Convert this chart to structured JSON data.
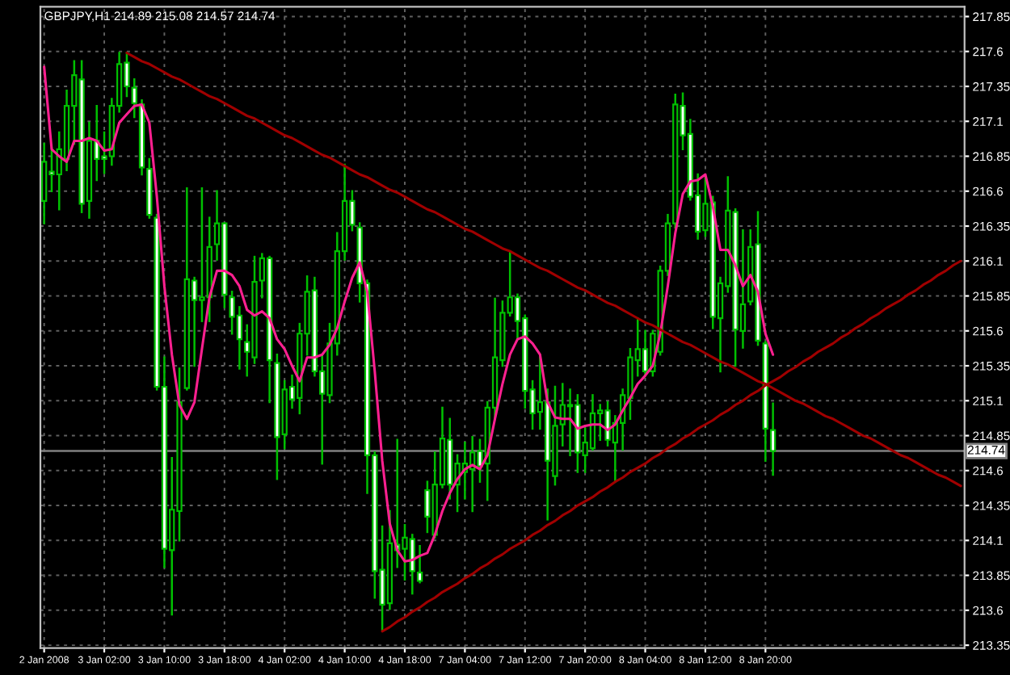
{
  "chart_data": {
    "type": "candlestick",
    "title": "GBPJPY,H1 214.89 215.08 214.57 214.74",
    "categories": [
      "2 Jan 2008",
      null,
      null,
      null,
      null,
      null,
      null,
      null,
      "3 Jan 02:00",
      null,
      null,
      null,
      null,
      null,
      null,
      null,
      "3 Jan 10:00",
      null,
      null,
      null,
      null,
      null,
      null,
      null,
      "3 Jan 18:00",
      null,
      null,
      null,
      null,
      null,
      null,
      null,
      "4 Jan 02:00",
      null,
      null,
      null,
      null,
      null,
      null,
      null,
      "4 Jan 10:00",
      null,
      null,
      null,
      null,
      null,
      null,
      null,
      "4 Jan 18:00",
      null,
      null,
      null,
      null,
      null,
      null,
      null,
      "7 Jan 04:00",
      null,
      null,
      null,
      null,
      null,
      null,
      null,
      "7 Jan 12:00",
      null,
      null,
      null,
      null,
      null,
      null,
      null,
      "7 Jan 20:00",
      null,
      null,
      null,
      null,
      null,
      null,
      null,
      "8 Jan 04:00",
      null,
      null,
      null,
      null,
      null,
      null,
      null,
      "8 Jan 12:00",
      null,
      null,
      null,
      null,
      null,
      null,
      null,
      "8 Jan 20:00",
      null,
      null,
      null,
      null,
      null,
      null,
      null,
      null,
      null,
      null,
      null,
      null,
      null,
      null,
      null,
      null,
      null,
      null,
      null,
      null,
      null,
      null,
      null,
      null,
      null,
      null
    ],
    "ylim": [
      213.33,
      217.92
    ],
    "yticks": [
      213.35,
      213.6,
      213.85,
      214.1,
      214.35,
      214.6,
      214.85,
      215.1,
      215.35,
      215.6,
      215.85,
      216.1,
      216.35,
      216.6,
      216.85,
      217.1,
      217.35,
      217.6,
      217.85
    ],
    "grid": true,
    "ref_lines": [
      {
        "axis": "y",
        "value": 214.74,
        "label": "214.74",
        "color": "#808080"
      }
    ],
    "series": [
      {
        "type": "line",
        "color": "#ff2090",
        "values": [
          217.49,
          216.9,
          216.85,
          216.81,
          216.96,
          216.96,
          216.98,
          216.96,
          216.89,
          216.9,
          217.09,
          217.15,
          217.21,
          217.22,
          217.09,
          216.56,
          215.92,
          215.43,
          215.07,
          214.97,
          215.09,
          215.47,
          215.84,
          216.03,
          216.03,
          216.0,
          215.92,
          215.75,
          215.71,
          215.74,
          215.69,
          215.54,
          215.47,
          215.35,
          215.24,
          215.41,
          215.41,
          215.43,
          215.5,
          215.62,
          215.81,
          215.98,
          216.09,
          215.88,
          215.31,
          214.67,
          214.22,
          214.03,
          213.95,
          213.96,
          213.99,
          214.01,
          214.14,
          214.31,
          214.44,
          214.54,
          214.61,
          214.64,
          214.61,
          214.71,
          214.97,
          215.22,
          215.43,
          215.54,
          215.56,
          215.51,
          215.43,
          215.09,
          214.98,
          214.97,
          214.97,
          214.9,
          214.92,
          214.93,
          214.93,
          214.89,
          214.93,
          215.03,
          215.12,
          215.22,
          215.28,
          215.35,
          215.58,
          215.92,
          216.3,
          216.58,
          216.67,
          216.68,
          216.72,
          216.49,
          216.18,
          216.18,
          216.07,
          215.92,
          216.0,
          215.88,
          215.58,
          215.43,
          null,
          null,
          null,
          null,
          null,
          null,
          null,
          null,
          null,
          null,
          null,
          null,
          null,
          null,
          null,
          null,
          null,
          null,
          null,
          null,
          null,
          null,
          null,
          null,
          null
        ]
      },
      {
        "type": "line",
        "color": "#a00000",
        "values": [
          null,
          null,
          null,
          null,
          null,
          null,
          null,
          null,
          null,
          null,
          null,
          217.59,
          217.56,
          217.53,
          217.51,
          217.48,
          217.45,
          217.42,
          217.4,
          217.37,
          217.34,
          217.31,
          217.28,
          217.26,
          217.23,
          217.2,
          217.17,
          217.14,
          217.12,
          217.09,
          217.06,
          217.03,
          217.0,
          216.98,
          216.95,
          216.92,
          216.89,
          216.86,
          216.84,
          216.81,
          216.78,
          216.75,
          216.72,
          216.7,
          216.67,
          216.64,
          216.61,
          216.59,
          216.56,
          216.53,
          216.5,
          216.47,
          216.45,
          216.42,
          216.39,
          216.36,
          216.33,
          216.31,
          216.28,
          216.25,
          216.22,
          216.19,
          216.17,
          216.14,
          216.11,
          216.08,
          216.05,
          216.03,
          216.0,
          215.97,
          215.94,
          215.91,
          215.89,
          215.86,
          215.83,
          215.8,
          215.78,
          215.75,
          215.72,
          215.69,
          215.66,
          215.64,
          215.61,
          215.58,
          215.55,
          215.52,
          215.5,
          215.47,
          215.44,
          215.41,
          215.38,
          215.36,
          215.33,
          215.3,
          215.27,
          215.24,
          215.22,
          215.19,
          215.16,
          215.13,
          215.1,
          215.08,
          215.05,
          215.02,
          214.99,
          214.97,
          214.94,
          214.91,
          214.88,
          214.85,
          214.83,
          214.8,
          214.77,
          214.74,
          214.71,
          214.69,
          214.66,
          214.63,
          214.6,
          214.57,
          214.55,
          214.52,
          214.49
        ]
      },
      {
        "type": "line",
        "color": "#a00000",
        "values": [
          null,
          null,
          null,
          null,
          null,
          null,
          null,
          null,
          null,
          null,
          null,
          null,
          null,
          null,
          null,
          null,
          null,
          null,
          null,
          null,
          null,
          null,
          null,
          null,
          null,
          null,
          null,
          null,
          null,
          null,
          null,
          null,
          null,
          null,
          null,
          null,
          null,
          null,
          null,
          null,
          null,
          null,
          null,
          null,
          null,
          213.45,
          213.48,
          213.52,
          213.55,
          213.59,
          213.62,
          213.66,
          213.69,
          213.73,
          213.76,
          213.79,
          213.83,
          213.86,
          213.9,
          213.93,
          213.97,
          214.0,
          214.04,
          214.07,
          214.1,
          214.14,
          214.17,
          214.21,
          214.24,
          214.28,
          214.31,
          214.35,
          214.38,
          214.41,
          214.45,
          214.48,
          214.52,
          214.55,
          214.59,
          214.62,
          214.65,
          214.69,
          214.72,
          214.76,
          214.79,
          214.83,
          214.86,
          214.9,
          214.93,
          214.96,
          215.0,
          215.03,
          215.07,
          215.1,
          215.14,
          215.17,
          215.21,
          215.24,
          215.27,
          215.31,
          215.34,
          215.38,
          215.41,
          215.45,
          215.48,
          215.51,
          215.55,
          215.58,
          215.62,
          215.65,
          215.69,
          215.72,
          215.76,
          215.79,
          215.82,
          215.86,
          215.89,
          215.93,
          215.96,
          216.0,
          216.03,
          216.07,
          216.1
        ]
      },
      {
        "color": "#00c000",
        "ohlc": [
          [
            216.53,
            216.94,
            216.37,
            216.81
          ],
          [
            216.74,
            216.91,
            216.6,
            216.72
          ],
          [
            216.72,
            217.02,
            216.47,
            216.9
          ],
          [
            216.83,
            217.32,
            216.75,
            217.21
          ],
          [
            217.21,
            217.53,
            216.94,
            217.43
          ],
          [
            217.4,
            217.53,
            216.45,
            216.51
          ],
          [
            216.53,
            217.09,
            216.41,
            216.96
          ],
          [
            216.96,
            217.21,
            216.68,
            216.83
          ],
          [
            216.85,
            217.02,
            216.73,
            216.83
          ],
          [
            216.85,
            217.26,
            216.79,
            217.21
          ],
          [
            217.21,
            217.59,
            217.17,
            217.51
          ],
          [
            217.52,
            217.59,
            217.28,
            217.35
          ],
          [
            217.34,
            217.4,
            217.13,
            217.23
          ],
          [
            217.22,
            217.25,
            216.72,
            216.77
          ],
          [
            216.76,
            216.83,
            216.41,
            216.43
          ],
          [
            216.41,
            216.43,
            215.18,
            215.2
          ],
          [
            215.2,
            215.41,
            213.91,
            214.04
          ],
          [
            214.03,
            214.69,
            213.57,
            214.32
          ],
          [
            214.31,
            215.33,
            214.1,
            215.09
          ],
          [
            215.19,
            216.62,
            215.18,
            215.97
          ],
          [
            215.96,
            215.98,
            215.35,
            215.82
          ],
          [
            215.82,
            216.62,
            215.67,
            215.84
          ],
          [
            215.84,
            216.41,
            215.67,
            216.2
          ],
          [
            216.22,
            216.6,
            216.11,
            216.37
          ],
          [
            216.37,
            216.37,
            215.77,
            215.86
          ],
          [
            215.84,
            215.88,
            215.58,
            215.7
          ],
          [
            215.71,
            215.77,
            215.33,
            215.54
          ],
          [
            215.52,
            215.64,
            215.28,
            215.45
          ],
          [
            215.41,
            216.13,
            215.37,
            215.95
          ],
          [
            215.96,
            216.15,
            215.84,
            216.12
          ],
          [
            216.12,
            216.13,
            215.09,
            215.39
          ],
          [
            215.37,
            215.43,
            214.54,
            214.84
          ],
          [
            214.86,
            215.24,
            214.76,
            215.18
          ],
          [
            215.2,
            215.28,
            215.05,
            215.11
          ],
          [
            215.12,
            215.65,
            215.01,
            215.58
          ],
          [
            215.58,
            215.99,
            215.43,
            215.88
          ],
          [
            215.89,
            215.98,
            215.28,
            215.31
          ],
          [
            215.31,
            215.43,
            214.65,
            215.15
          ],
          [
            215.14,
            215.65,
            215.09,
            215.51
          ],
          [
            215.51,
            216.3,
            215.43,
            216.17
          ],
          [
            216.17,
            216.79,
            216.11,
            216.53
          ],
          [
            216.53,
            216.6,
            216.32,
            216.36
          ],
          [
            216.34,
            216.37,
            215.81,
            215.94
          ],
          [
            215.94,
            215.96,
            214.44,
            214.71
          ],
          [
            214.71,
            214.73,
            213.69,
            213.88
          ],
          [
            213.89,
            214.2,
            213.46,
            213.64
          ],
          [
            213.65,
            214.31,
            213.61,
            214.08
          ],
          [
            214.07,
            214.82,
            213.91,
            214.03
          ],
          [
            214.04,
            214.21,
            213.82,
            214.12
          ],
          [
            214.11,
            214.14,
            213.72,
            213.88
          ],
          [
            213.87,
            214.06,
            213.8,
            213.81
          ],
          [
            214.46,
            214.52,
            214.16,
            214.27
          ],
          [
            214.14,
            214.73,
            214.12,
            214.5
          ],
          [
            214.5,
            215.05,
            214.48,
            214.83
          ],
          [
            214.82,
            214.97,
            214.4,
            214.5
          ],
          [
            214.5,
            214.71,
            214.31,
            214.65
          ],
          [
            214.59,
            214.8,
            214.4,
            214.65
          ],
          [
            214.61,
            214.84,
            214.31,
            214.73
          ],
          [
            214.74,
            214.82,
            214.52,
            214.63
          ],
          [
            214.65,
            215.09,
            214.39,
            215.05
          ],
          [
            215.05,
            215.83,
            214.97,
            215.41
          ],
          [
            215.39,
            215.81,
            215.35,
            215.73
          ],
          [
            215.73,
            216.17,
            215.71,
            215.84
          ],
          [
            215.84,
            215.86,
            215.54,
            215.67
          ],
          [
            215.69,
            215.71,
            215.05,
            215.17
          ],
          [
            215.18,
            215.24,
            214.9,
            215.01
          ],
          [
            215.02,
            215.41,
            214.9,
            215.09
          ],
          [
            215.09,
            215.18,
            214.25,
            214.67
          ],
          [
            214.56,
            215.2,
            214.5,
            214.92
          ],
          [
            214.93,
            215.22,
            214.78,
            215.07
          ],
          [
            215.06,
            215.18,
            214.71,
            215.07
          ],
          [
            215.07,
            215.14,
            214.59,
            214.73
          ],
          [
            214.71,
            214.9,
            214.59,
            214.8
          ],
          [
            214.76,
            215.14,
            214.75,
            215.01
          ],
          [
            215.01,
            215.07,
            214.82,
            215.03
          ],
          [
            215.03,
            215.09,
            214.78,
            214.82
          ],
          [
            214.8,
            214.99,
            214.52,
            214.94
          ],
          [
            214.94,
            215.18,
            214.75,
            215.14
          ],
          [
            215.12,
            215.47,
            214.97,
            215.41
          ],
          [
            215.39,
            215.69,
            215.28,
            215.47
          ],
          [
            215.47,
            215.6,
            215.28,
            215.31
          ],
          [
            215.31,
            215.6,
            215.28,
            215.58
          ],
          [
            215.45,
            216.06,
            215.43,
            216.03
          ],
          [
            216.03,
            216.43,
            216.0,
            216.37
          ],
          [
            216.37,
            217.29,
            216.34,
            217.22
          ],
          [
            217.21,
            217.3,
            216.9,
            217.0
          ],
          [
            217.01,
            217.11,
            216.54,
            216.56
          ],
          [
            216.57,
            216.72,
            216.26,
            216.31
          ],
          [
            216.32,
            216.7,
            216.28,
            216.51
          ],
          [
            216.52,
            216.56,
            215.62,
            215.7
          ],
          [
            215.69,
            215.98,
            215.31,
            215.94
          ],
          [
            215.92,
            216.7,
            215.88,
            216.46
          ],
          [
            216.45,
            216.47,
            215.35,
            215.61
          ],
          [
            215.6,
            216.32,
            215.48,
            215.79
          ],
          [
            215.81,
            216.32,
            215.79,
            216.2
          ],
          [
            216.22,
            216.45,
            215.5,
            215.53
          ],
          [
            215.51,
            215.52,
            214.67,
            214.9
          ],
          [
            214.89,
            215.08,
            214.57,
            214.74
          ],
          null,
          null,
          null,
          null,
          null,
          null,
          null,
          null,
          null,
          null,
          null,
          null,
          null,
          null,
          null,
          null,
          null,
          null,
          null,
          null,
          null,
          null,
          null,
          null,
          null
        ]
      }
    ]
  }
}
